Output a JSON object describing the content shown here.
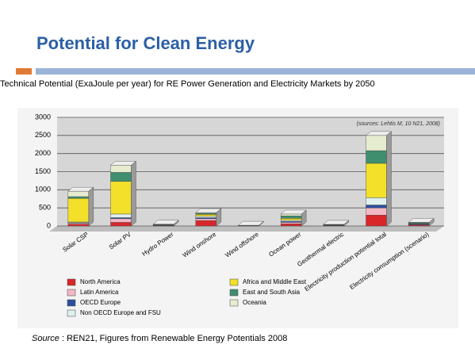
{
  "slide_title": "Potential for Clean Energy",
  "source_label": "Source",
  "source_text": ": REN21, Figures from Renewable Energy Potentials 2008",
  "chart_data": {
    "type": "bar",
    "stacked": true,
    "title": "Technical Potential (ExaJoule per year) for RE Power Generation and Electricity Markets by 2050",
    "annotation": "(sources: Lehtis M, 10 N21, 2008)",
    "categories": [
      "Solar CSP",
      "Solar PV",
      "Hydro Power",
      "Wind onshore",
      "Wind offshore",
      "Ocean power",
      "Geothermal electric",
      "Electricity production potential total",
      "Electricity consumption (scenario)"
    ],
    "series": [
      {
        "name": "North America",
        "color": "#d9262b",
        "values": [
          50,
          100,
          10,
          150,
          5,
          60,
          10,
          300,
          30
        ]
      },
      {
        "name": "Latin America",
        "color": "#f2b8c6",
        "values": [
          30,
          100,
          10,
          50,
          3,
          40,
          8,
          200,
          5
        ]
      },
      {
        "name": "OECD Europe",
        "color": "#2b4fa0",
        "values": [
          10,
          30,
          5,
          30,
          3,
          30,
          3,
          80,
          20
        ]
      },
      {
        "name": "Non OECD Europe and FSU",
        "color": "#dff0ee",
        "values": [
          20,
          100,
          5,
          40,
          3,
          30,
          5,
          200,
          10
        ]
      },
      {
        "name": "Africa and Middle East",
        "color": "#f2e02a",
        "values": [
          650,
          900,
          10,
          50,
          2,
          50,
          8,
          950,
          5
        ]
      },
      {
        "name": "East and South Asia",
        "color": "#3f8f6e",
        "values": [
          50,
          250,
          5,
          30,
          2,
          70,
          6,
          350,
          25
        ]
      },
      {
        "name": "Oceania",
        "color": "#e6eccf",
        "values": [
          150,
          200,
          5,
          20,
          2,
          50,
          5,
          420,
          5
        ]
      }
    ],
    "ylim": [
      0,
      3000
    ],
    "yticks": [
      0,
      500,
      1000,
      1500,
      2000,
      2500,
      3000
    ],
    "grid": true
  }
}
